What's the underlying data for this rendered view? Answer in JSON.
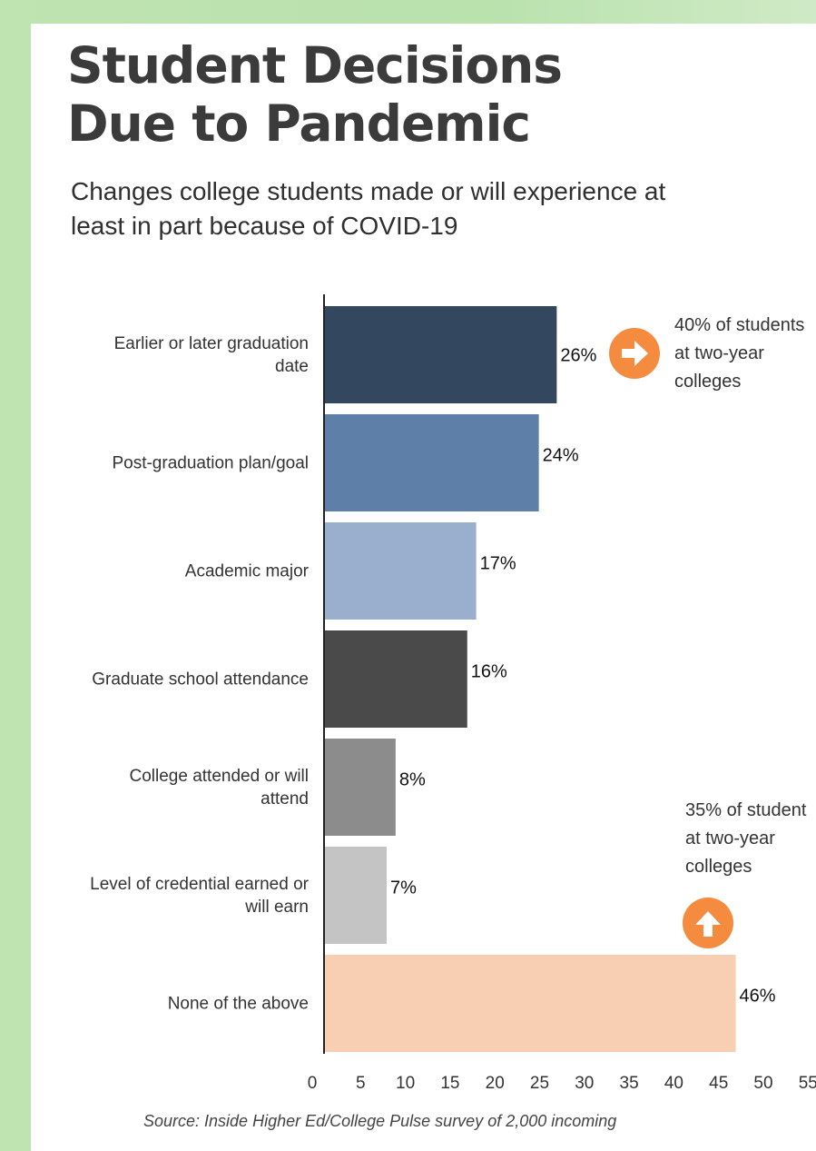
{
  "header": {
    "title_line1": "Student Decisions",
    "title_line2": "Due to Pandemic",
    "subtitle": "Changes college students made or will experience at least in part because of COVID-19"
  },
  "colors": {
    "background": "#bfe3b1",
    "accent": "#f58b3e"
  },
  "chart_data": {
    "type": "bar",
    "orientation": "horizontal",
    "title": "",
    "xlabel": "",
    "ylabel": "",
    "xlim": [
      0,
      55
    ],
    "grid": false,
    "categories": [
      [
        "Earlier or later graduation",
        "date"
      ],
      [
        "Post-graduation plan/goal"
      ],
      [
        "Academic major"
      ],
      [
        "Graduate school attendance"
      ],
      [
        "College attended or will",
        "attend"
      ],
      [
        "Level of credential earned or",
        "will earn"
      ],
      [
        "None of the above"
      ]
    ],
    "values": [
      26,
      24,
      17,
      16,
      8,
      7,
      46
    ],
    "value_labels": [
      "26%",
      "24%",
      "17%",
      "16%",
      "8%",
      "7%",
      "46%"
    ],
    "bar_colors": [
      "#33475e",
      "#5e7fa8",
      "#9aafcd",
      "#4a4a4a",
      "#8c8c8c",
      "#c4c4c4",
      "#f9cfb3"
    ],
    "ticks": [
      0,
      5,
      10,
      15,
      20,
      25,
      30,
      35,
      40,
      45,
      50,
      55
    ],
    "annotations": [
      {
        "bar_index": 0,
        "icon": "arrow-right-icon",
        "lines": [
          "40% of students",
          "at two-year",
          "colleges"
        ]
      },
      {
        "bar_index": 6,
        "icon": "arrow-up-icon",
        "lines": [
          "35% of student",
          "at two-year",
          "colleges"
        ]
      }
    ]
  },
  "footer": {
    "source": "Source: Inside Higher Ed/College Pulse survey of 2,000 incoming"
  }
}
